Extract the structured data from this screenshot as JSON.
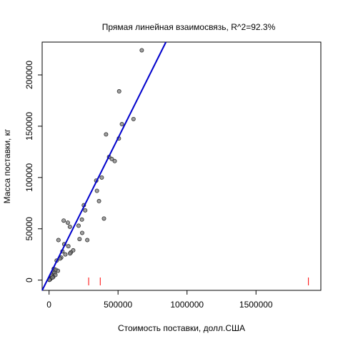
{
  "chart_data": {
    "type": "scatter",
    "title": "Прямая линейная взаимосвязь, R^2=92.3%",
    "xlabel": "Стоимость поставки, долл.США",
    "ylabel": "Масса поставки, кг",
    "xlim": [
      -50000,
      1970000
    ],
    "ylim": [
      -10000,
      232000
    ],
    "x_ticks": [
      0,
      500000,
      1000000,
      1500000
    ],
    "x_tick_labels": [
      "0",
      "500000",
      "1000000",
      "1500000"
    ],
    "y_ticks": [
      0,
      50000,
      100000,
      150000,
      200000
    ],
    "y_tick_labels": [
      "0",
      "50000",
      "100000",
      "150000",
      "200000"
    ],
    "grid": false,
    "legend": "none",
    "colors": {
      "points_fill": "#808080",
      "points_edge": "#303030",
      "fit_line": "#0000cc",
      "rug_ticks": "#ff0000"
    },
    "series": [
      {
        "points": [
          [
            672000,
            224000
          ],
          [
            508000,
            184000
          ],
          [
            528000,
            152000
          ],
          [
            612000,
            157000
          ],
          [
            413000,
            142000
          ],
          [
            506000,
            138000
          ],
          [
            435000,
            120000
          ],
          [
            455000,
            118000
          ],
          [
            476000,
            116000
          ],
          [
            342000,
            97000
          ],
          [
            382000,
            100000
          ],
          [
            347000,
            87000
          ],
          [
            362000,
            77000
          ],
          [
            252000,
            73000
          ],
          [
            262000,
            68000
          ],
          [
            398000,
            60000
          ],
          [
            106000,
            58000
          ],
          [
            136000,
            56000
          ],
          [
            238000,
            59000
          ],
          [
            151000,
            52000
          ],
          [
            214000,
            53000
          ],
          [
            240000,
            46000
          ],
          [
            221000,
            40000
          ],
          [
            277000,
            39000
          ],
          [
            68000,
            39000
          ],
          [
            110000,
            35000
          ],
          [
            140000,
            33000
          ],
          [
            175000,
            29000
          ],
          [
            97000,
            28000
          ],
          [
            158000,
            27000
          ],
          [
            118000,
            25000
          ],
          [
            152000,
            26000
          ],
          [
            88000,
            22000
          ],
          [
            80000,
            21000
          ],
          [
            55000,
            19000
          ],
          [
            34000,
            11000
          ],
          [
            49000,
            10000
          ],
          [
            64000,
            9000
          ],
          [
            28000,
            8000
          ],
          [
            39000,
            7000
          ],
          [
            46000,
            5000
          ],
          [
            20000,
            4000
          ],
          [
            30000,
            3000
          ],
          [
            14000,
            2000
          ],
          [
            9000,
            1000
          ],
          [
            5000,
            500
          ],
          [
            2000,
            200
          ],
          [
            25000,
            2500
          ]
        ]
      }
    ],
    "fit_line": {
      "x": [
        -50000,
        847000
      ],
      "y": [
        -10000,
        232000
      ]
    },
    "rug_x": [
      287000,
      371000,
      1880000
    ]
  }
}
